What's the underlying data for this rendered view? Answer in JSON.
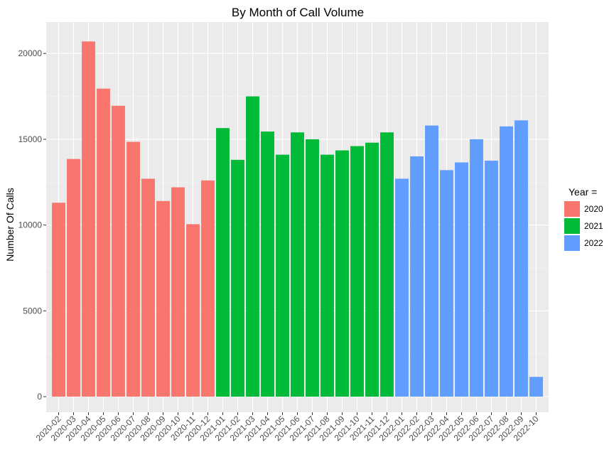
{
  "chart_data": {
    "type": "bar",
    "title": "By Month of Call Volume",
    "xlabel": "",
    "ylabel": "Number Of Calls",
    "ylim": [
      0,
      21500
    ],
    "yticks": [
      0,
      5000,
      10000,
      15000,
      20000
    ],
    "grid": true,
    "legend": {
      "title": "Year =",
      "placement": "right"
    },
    "colors": {
      "2020": "#F8766D",
      "2021": "#00BA38",
      "2022": "#619CFF"
    },
    "categories": [
      "2020-02",
      "2020-03",
      "2020-04",
      "2020-05",
      "2020-06",
      "2020-07",
      "2020-08",
      "2020-09",
      "2020-10",
      "2020-11",
      "2020-12",
      "2021-01",
      "2021-02",
      "2021-03",
      "2021-04",
      "2021-05",
      "2021-06",
      "2021-07",
      "2021-08",
      "2021-09",
      "2021-10",
      "2021-11",
      "2021-12",
      "2022-01",
      "2022-02",
      "2022-03",
      "2022-04",
      "2022-05",
      "2022-06",
      "2022-07",
      "2022-08",
      "2022-09",
      "2022-10"
    ],
    "series": [
      {
        "name": "2020",
        "x": [
          "2020-02",
          "2020-03",
          "2020-04",
          "2020-05",
          "2020-06",
          "2020-07",
          "2020-08",
          "2020-09",
          "2020-10",
          "2020-11",
          "2020-12"
        ],
        "values": [
          11300,
          13850,
          20700,
          17950,
          16950,
          14850,
          12700,
          11400,
          12200,
          10050,
          12600
        ]
      },
      {
        "name": "2021",
        "x": [
          "2021-01",
          "2021-02",
          "2021-03",
          "2021-04",
          "2021-05",
          "2021-06",
          "2021-07",
          "2021-08",
          "2021-09",
          "2021-10",
          "2021-11",
          "2021-12"
        ],
        "values": [
          15650,
          13800,
          17500,
          15450,
          14100,
          15400,
          15000,
          14100,
          14350,
          14600,
          14800,
          15400
        ]
      },
      {
        "name": "2022",
        "x": [
          "2022-01",
          "2022-02",
          "2022-03",
          "2022-04",
          "2022-05",
          "2022-06",
          "2022-07",
          "2022-08",
          "2022-09",
          "2022-10"
        ],
        "values": [
          12700,
          14000,
          15800,
          13200,
          13650,
          15000,
          13750,
          15750,
          16100,
          1150
        ]
      }
    ]
  }
}
